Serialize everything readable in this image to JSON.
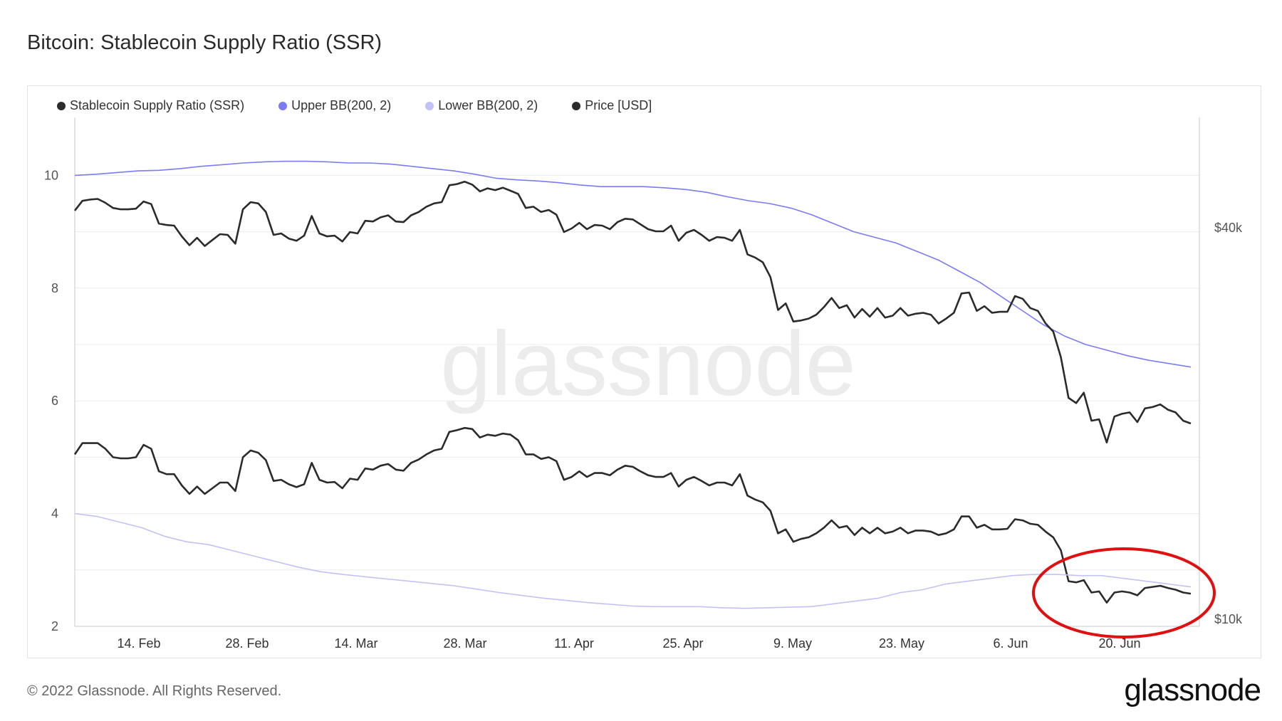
{
  "header": {
    "title": "Bitcoin: Stablecoin Supply Ratio (SSR)"
  },
  "footer": {
    "copyright": "© 2022 Glassnode. All Rights Reserved.",
    "brand": "glassnode"
  },
  "watermark": "glassnode",
  "colors": {
    "ssr": "#2b2b2b",
    "upper_bb": "#7b7bf4",
    "lower_bb": "#c2c2f7",
    "price": "#2b2b2b",
    "highlight": "#e01010"
  },
  "chart_data": {
    "type": "line",
    "title": "Bitcoin: Stablecoin Supply Ratio (SSR)",
    "grid": true,
    "legend_position": "top-left",
    "x_ticks": [
      "14. Feb",
      "28. Feb",
      "14. Mar",
      "28. Mar",
      "11. Apr",
      "25. Apr",
      "9. May",
      "23. May",
      "6. Jun",
      "20. Jun"
    ],
    "y_left": {
      "ticks": [
        "10",
        "8",
        "6",
        "4",
        "2"
      ],
      "range": [
        2,
        11
      ]
    },
    "y_right": {
      "ticks": [
        "$40k",
        "$10k"
      ],
      "scale": "log"
    },
    "series": [
      {
        "name": "Stablecoin Supply Ratio (SSR)",
        "axis": "left",
        "values": [
          5.05,
          5.25,
          5.25,
          5.25,
          5.15,
          5.0,
          4.98,
          4.98,
          5.0,
          5.22,
          5.15,
          4.75,
          4.7,
          4.7,
          4.5,
          4.35,
          4.48,
          4.35,
          4.45,
          4.55,
          4.55,
          4.4,
          5.0,
          5.12,
          5.08,
          4.95,
          4.58,
          4.6,
          4.52,
          4.47,
          4.52,
          4.9,
          4.6,
          4.55,
          4.56,
          4.45,
          4.62,
          4.6,
          4.8,
          4.78,
          4.85,
          4.88,
          4.78,
          4.76,
          4.9,
          4.96,
          5.05,
          5.12,
          5.15,
          5.45,
          5.48,
          5.52,
          5.5,
          5.35,
          5.4,
          5.38,
          5.42,
          5.4,
          5.3,
          5.05,
          5.05,
          4.97,
          5.0,
          4.93,
          4.6,
          4.65,
          4.75,
          4.65,
          4.72,
          4.72,
          4.68,
          4.78,
          4.85,
          4.83,
          4.75,
          4.68,
          4.65,
          4.65,
          4.72,
          4.48,
          4.6,
          4.65,
          4.58,
          4.5,
          4.55,
          4.55,
          4.5,
          4.7,
          4.32,
          4.25,
          4.2,
          4.05,
          3.65,
          3.72,
          3.5,
          3.55,
          3.58,
          3.65,
          3.75,
          3.88,
          3.75,
          3.78,
          3.62,
          3.75,
          3.65,
          3.75,
          3.65,
          3.68,
          3.75,
          3.65,
          3.7,
          3.7,
          3.68,
          3.62,
          3.65,
          3.72,
          3.95,
          3.95,
          3.75,
          3.8,
          3.72,
          3.72,
          3.73,
          3.9,
          3.88,
          3.82,
          3.8,
          3.68,
          3.58,
          3.35,
          2.8,
          2.78,
          2.82,
          2.6,
          2.62,
          2.42,
          2.6,
          2.62,
          2.6,
          2.55,
          2.68,
          2.7,
          2.72,
          2.68,
          2.65,
          2.6,
          2.58
        ]
      },
      {
        "name": "Upper BB(200, 2)",
        "axis": "left",
        "values": [
          10.0,
          10.02,
          10.05,
          10.08,
          10.09,
          10.12,
          10.16,
          10.19,
          10.22,
          10.24,
          10.25,
          10.25,
          10.24,
          10.22,
          10.22,
          10.2,
          10.16,
          10.12,
          10.08,
          10.02,
          9.95,
          9.92,
          9.9,
          9.87,
          9.83,
          9.8,
          9.8,
          9.8,
          9.78,
          9.75,
          9.7,
          9.62,
          9.55,
          9.5,
          9.42,
          9.3,
          9.15,
          9.0,
          8.9,
          8.8,
          8.65,
          8.5,
          8.3,
          8.1,
          7.85,
          7.6,
          7.35,
          7.15,
          7.0,
          6.9,
          6.8,
          6.72,
          6.66,
          6.6
        ]
      },
      {
        "name": "Lower BB(200, 2)",
        "axis": "left",
        "values": [
          4.0,
          3.95,
          3.85,
          3.75,
          3.6,
          3.5,
          3.45,
          3.35,
          3.25,
          3.15,
          3.05,
          2.97,
          2.92,
          2.88,
          2.84,
          2.8,
          2.76,
          2.72,
          2.66,
          2.6,
          2.55,
          2.5,
          2.46,
          2.42,
          2.39,
          2.36,
          2.35,
          2.35,
          2.35,
          2.33,
          2.32,
          2.33,
          2.34,
          2.35,
          2.4,
          2.45,
          2.5,
          2.6,
          2.65,
          2.75,
          2.8,
          2.85,
          2.9,
          2.92,
          2.92,
          2.9,
          2.9,
          2.85,
          2.8,
          2.75,
          2.7
        ]
      },
      {
        "name": "Price [USD]",
        "axis": "right",
        "values": [
          42500,
          44000,
          44200,
          44300,
          43700,
          42900,
          42700,
          42700,
          42800,
          43900,
          43500,
          40600,
          40400,
          40300,
          38800,
          37600,
          38600,
          37500,
          38300,
          39100,
          39000,
          37800,
          42700,
          43800,
          43600,
          42300,
          39000,
          39200,
          38500,
          38200,
          38900,
          41700,
          39200,
          38800,
          38900,
          38100,
          39400,
          39200,
          41000,
          40900,
          41500,
          41800,
          40900,
          40800,
          41800,
          42300,
          43100,
          43600,
          43800,
          46500,
          46700,
          47100,
          46600,
          45500,
          46000,
          45700,
          46100,
          45600,
          45100,
          42900,
          43100,
          42300,
          42600,
          41900,
          39400,
          39900,
          40700,
          39800,
          40400,
          40300,
          39800,
          40800,
          41300,
          41200,
          40500,
          39800,
          39500,
          39500,
          40300,
          38200,
          39300,
          39700,
          39000,
          38200,
          38700,
          38600,
          38200,
          39700,
          36400,
          36000,
          35400,
          33600,
          29900,
          30600,
          28700,
          28800,
          29000,
          29400,
          30200,
          31200,
          30100,
          30400,
          29100,
          30000,
          29200,
          30100,
          29100,
          29300,
          30100,
          29300,
          29500,
          29600,
          29400,
          28500,
          29000,
          29600,
          31700,
          31800,
          29800,
          30300,
          29600,
          29700,
          29700,
          31400,
          31100,
          30100,
          29800,
          28500,
          27700,
          25300,
          21900,
          21500,
          22300,
          20200,
          20300,
          18700,
          20500,
          20700,
          20800,
          20100,
          21100,
          21200,
          21400,
          21000,
          20800,
          20200,
          20000
        ]
      }
    ]
  }
}
